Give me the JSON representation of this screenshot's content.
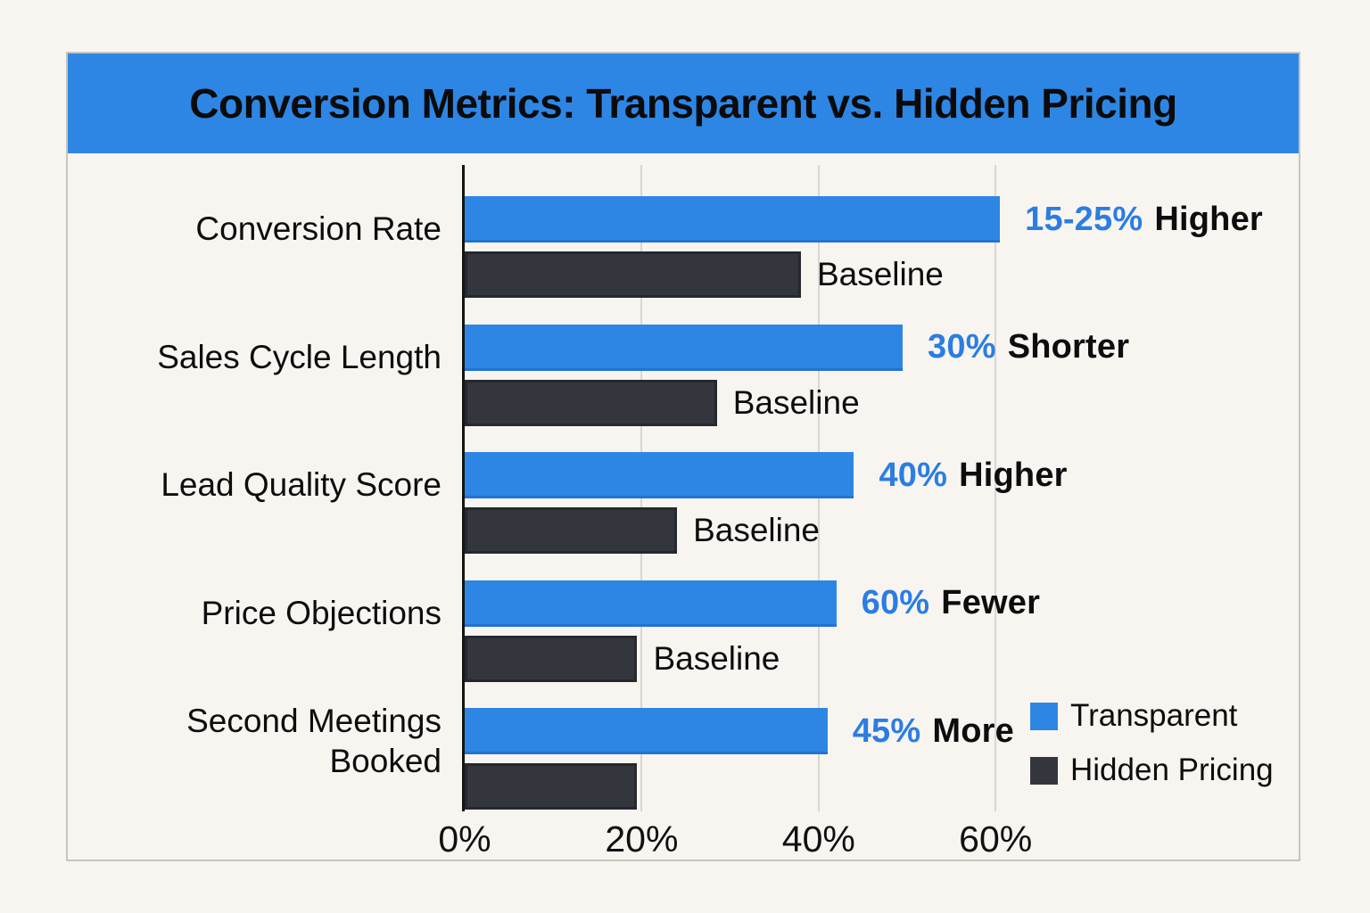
{
  "title": "Conversion Metrics: Transparent vs. Hidden Pricing",
  "colors": {
    "accent_blue": "#2e86e4",
    "annotation_blue": "#2b7de2",
    "dark": "#33373d",
    "background": "#f8f5f1",
    "grid": "#dad7d3",
    "card_border": "#c8c5c1",
    "text": "#0d0d0d"
  },
  "legend": {
    "items": [
      {
        "label": "Transparent",
        "color": "#2e86e4"
      },
      {
        "label": "Hidden Pricing",
        "color": "#33373d"
      }
    ]
  },
  "chart_data": {
    "type": "bar",
    "orientation": "horizontal",
    "title": "Conversion Metrics: Transparent vs. Hidden Pricing",
    "categories": [
      "Conversion Rate",
      "Sales Cycle Length",
      "Lead Quality Score",
      "Price Objections",
      "Second Meetings Booked"
    ],
    "series": [
      {
        "name": "Transparent",
        "color": "#2e86e4",
        "values": [
          60.5,
          49.5,
          44,
          42,
          41
        ]
      },
      {
        "name": "Hidden Pricing",
        "color": "#33373d",
        "values": [
          38,
          28.5,
          24,
          19.5,
          19.5
        ]
      }
    ],
    "bar_annotations": [
      {
        "value_text": "15-25%",
        "suffix_text": "Higher"
      },
      {
        "value_text": "30%",
        "suffix_text": "Shorter"
      },
      {
        "value_text": "40%",
        "suffix_text": "Higher"
      },
      {
        "value_text": "60%",
        "suffix_text": "Fewer"
      },
      {
        "value_text": "45%",
        "suffix_text": "More"
      }
    ],
    "baseline_label": "Baseline",
    "baseline_label_rows": [
      true,
      true,
      true,
      true,
      false
    ],
    "x_tick_labels": [
      "0%",
      "20%",
      "40%",
      "60%"
    ],
    "x_tick_values": [
      0,
      20,
      40,
      60
    ],
    "xlim": [
      0,
      94.5
    ],
    "grid": true,
    "legend_position": "bottom-right"
  }
}
